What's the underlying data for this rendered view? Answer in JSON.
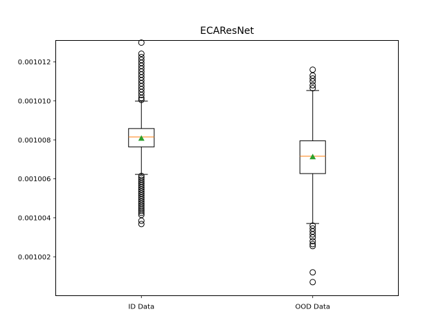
{
  "chart_data": {
    "type": "box",
    "title": "ECAResNet",
    "xlabel": "",
    "ylabel": "",
    "categories": [
      "ID Data",
      "OOD Data"
    ],
    "ylim": [
      0.001000004,
      0.0010131
    ],
    "yticks": [
      "0.001002",
      "0.001004",
      "0.001006",
      "0.001008",
      "0.001010",
      "0.001012"
    ],
    "ytick_values": [
      0.001002,
      0.001004,
      0.001006,
      0.001008,
      0.00101,
      0.001012
    ],
    "grid": false,
    "boxes": [
      {
        "name": "ID Data",
        "whisker_low": 0.00100623,
        "q1": 0.00100764,
        "median": 0.00100815,
        "q3": 0.00100858,
        "whisker_high": 0.00100999,
        "mean": 0.00100808,
        "outliers": [
          0.00101299,
          0.00101242,
          0.00101225,
          0.0010121,
          0.00101195,
          0.0010118,
          0.00101165,
          0.0010115,
          0.00101135,
          0.0010112,
          0.00101105,
          0.0010109,
          0.00101075,
          0.0010106,
          0.00101045,
          0.0010103,
          0.00101015,
          0.00101005,
          0.00100615,
          0.00100605,
          0.00100595,
          0.00100585,
          0.00100575,
          0.00100565,
          0.00100555,
          0.00100545,
          0.00100535,
          0.00100525,
          0.00100515,
          0.00100505,
          0.00100495,
          0.00100485,
          0.00100475,
          0.00100465,
          0.00100455,
          0.00100445,
          0.00100435,
          0.00100425,
          0.00100415,
          0.00100385,
          0.00100368
        ]
      },
      {
        "name": "OOD Data",
        "whisker_low": 0.00100371,
        "q1": 0.00100627,
        "median": 0.00100716,
        "q3": 0.00100795,
        "whisker_high": 0.00101053,
        "mean": 0.00100713,
        "outliers": [
          0.0010116,
          0.0010113,
          0.00101115,
          0.001011,
          0.0010108,
          0.00101065,
          0.0010036,
          0.00100345,
          0.0010033,
          0.00100315,
          0.001003,
          0.0010028,
          0.00100265,
          0.00100255,
          0.0010012,
          0.0010007
        ]
      }
    ],
    "colors": {
      "box": "#000000",
      "median": "#ff7f0e",
      "mean": "#2ca02c",
      "outlier": "#000000"
    }
  }
}
